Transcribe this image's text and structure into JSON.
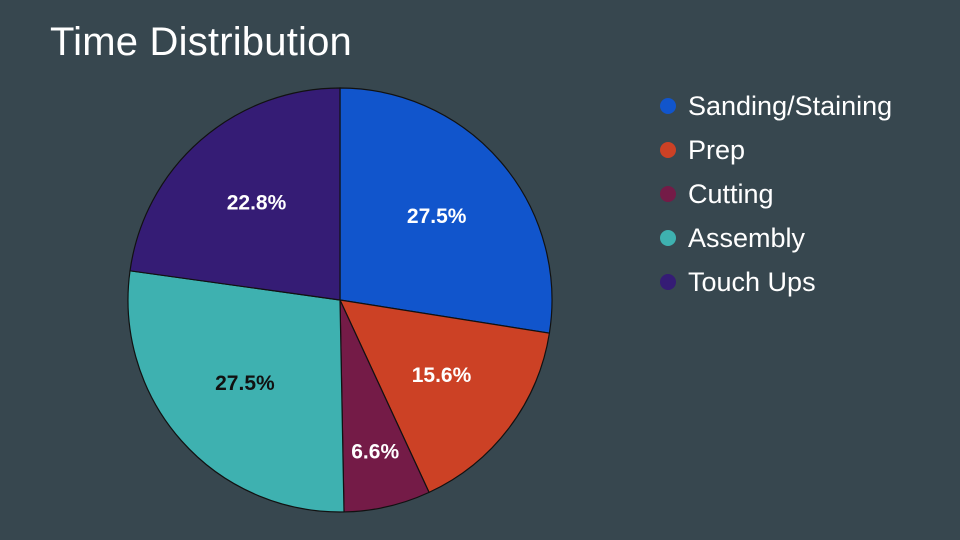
{
  "chart_data": {
    "type": "pie",
    "title": "Time Distribution",
    "legend_position": "right",
    "slices": [
      {
        "label": "Sanding/Staining",
        "value": 27.5,
        "value_label": "27.5%",
        "color": "#1155cc",
        "label_color": "#ffffff"
      },
      {
        "label": "Prep",
        "value": 15.6,
        "value_label": "15.6%",
        "color": "#cc4125",
        "label_color": "#ffffff"
      },
      {
        "label": "Cutting",
        "value": 6.6,
        "value_label": "6.6%",
        "color": "#741b47",
        "label_color": "#ffffff"
      },
      {
        "label": "Assembly",
        "value": 27.5,
        "value_label": "27.5%",
        "color": "#3eb1b0",
        "label_color": "#111111"
      },
      {
        "label": "Touch Ups",
        "value": 22.8,
        "value_label": "22.8%",
        "color": "#351c75",
        "label_color": "#ffffff"
      }
    ]
  }
}
